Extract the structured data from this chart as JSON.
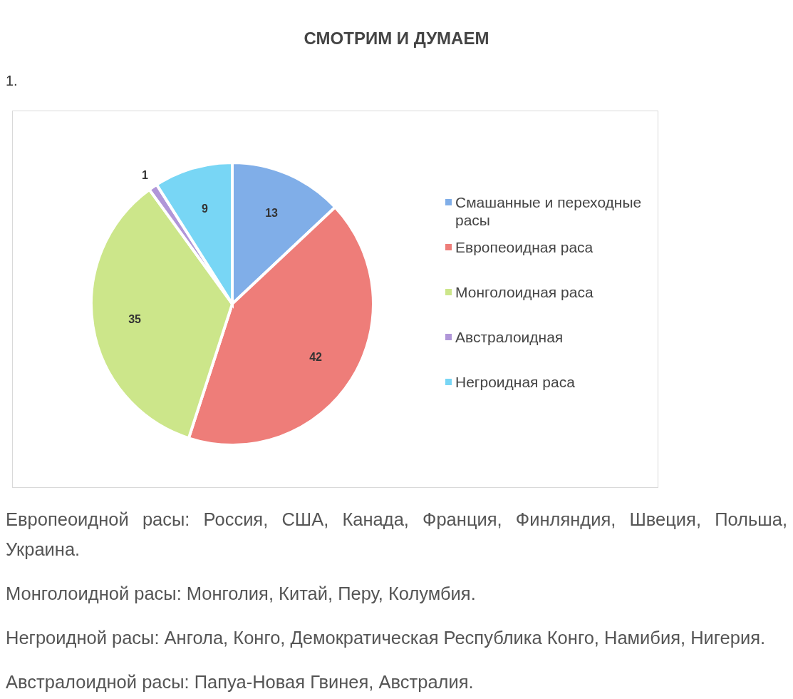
{
  "chart_data": {
    "type": "pie",
    "title": "СМОТРИМ И ДУМАЕМ",
    "categories": [
      "Смашанные и переходные расы",
      "Европеоидная раса",
      "Монголоидная раса",
      "Австралоидная",
      "Негроидная раса"
    ],
    "values": [
      13,
      42,
      35,
      1,
      9
    ],
    "colors": [
      "#80aee8",
      "#ee7d79",
      "#cce68a",
      "#b096d8",
      "#78d6f5"
    ],
    "data_labels": true,
    "legend": "right",
    "annotations": [
      "1.",
      "Европеоидной расы: Россия, США, Канада, Франция, Финляндия, Швеция, Польша, Украина.",
      "Монголоидной расы: Монголия, Китай, Перу, Колумбия.",
      "Негроидной расы: Ангола, Конго, Демократическая Республика Конго, Намибия, Нигерия.",
      "Австралоидной расы: Папуа-Новая Гвинея, Австралия."
    ]
  }
}
